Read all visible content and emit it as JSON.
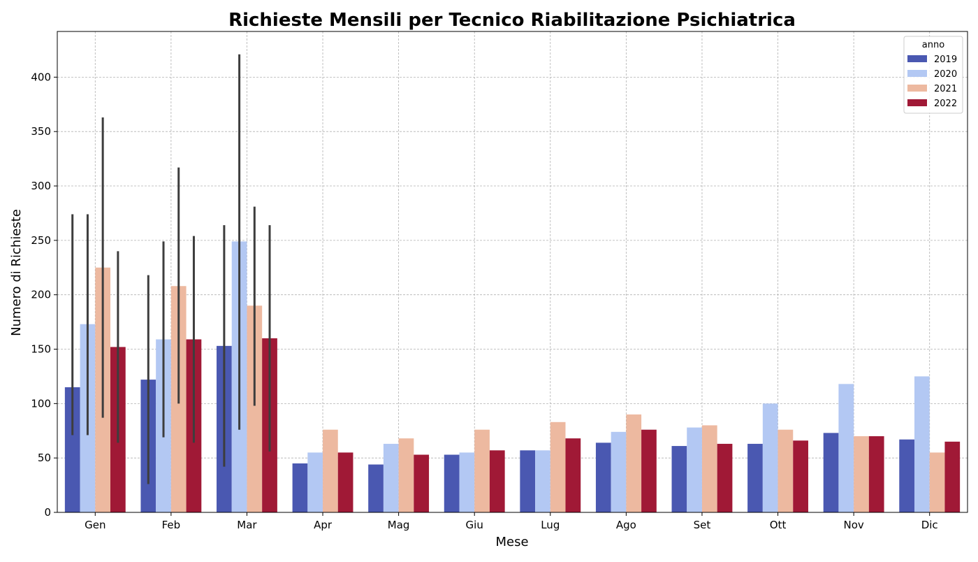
{
  "chart_data": {
    "type": "bar",
    "title": "Richieste Mensili per Tecnico Riabilitazione Psichiatrica",
    "xlabel": "Mese",
    "ylabel": "Numero di Richieste",
    "categories": [
      "Gen",
      "Feb",
      "Mar",
      "Apr",
      "Mag",
      "Giu",
      "Lug",
      "Ago",
      "Set",
      "Ott",
      "Nov",
      "Dic"
    ],
    "ylim": [
      0,
      442
    ],
    "yticks": [
      0,
      50,
      100,
      150,
      200,
      250,
      300,
      350,
      400
    ],
    "grid": true,
    "legend": {
      "title": "anno",
      "placement": "top-right"
    },
    "series": [
      {
        "name": "2019",
        "color": "#4a58b1",
        "values": [
          115,
          122,
          153,
          45,
          44,
          53,
          57,
          64,
          61,
          63,
          73,
          67
        ],
        "error_low": [
          71,
          26,
          42,
          null,
          null,
          null,
          null,
          null,
          null,
          null,
          null,
          null
        ],
        "error_high": [
          274,
          218,
          264,
          null,
          null,
          null,
          null,
          null,
          null,
          null,
          null,
          null
        ]
      },
      {
        "name": "2020",
        "color": "#b3c8f3",
        "values": [
          173,
          159,
          249,
          55,
          63,
          55,
          57,
          74,
          78,
          100,
          118,
          125
        ],
        "error_low": [
          71,
          69,
          76,
          null,
          null,
          null,
          null,
          null,
          null,
          null,
          null,
          null
        ],
        "error_high": [
          274,
          249,
          421,
          null,
          null,
          null,
          null,
          null,
          null,
          null,
          null,
          null
        ]
      },
      {
        "name": "2021",
        "color": "#edb9a0",
        "values": [
          225,
          208,
          190,
          76,
          68,
          76,
          83,
          90,
          80,
          76,
          70,
          55
        ],
        "error_low": [
          87,
          100,
          98,
          null,
          null,
          null,
          null,
          null,
          null,
          null,
          null,
          null
        ],
        "error_high": [
          363,
          317,
          281,
          null,
          null,
          null,
          null,
          null,
          null,
          null,
          null,
          null
        ]
      },
      {
        "name": "2022",
        "color": "#a01936",
        "values": [
          152,
          159,
          160,
          55,
          53,
          57,
          68,
          76,
          63,
          66,
          70,
          65
        ],
        "error_low": [
          64,
          64,
          56,
          null,
          null,
          null,
          null,
          null,
          null,
          null,
          null,
          null
        ],
        "error_high": [
          240,
          254,
          264,
          null,
          null,
          null,
          null,
          null,
          null,
          null,
          null,
          null
        ]
      }
    ]
  }
}
